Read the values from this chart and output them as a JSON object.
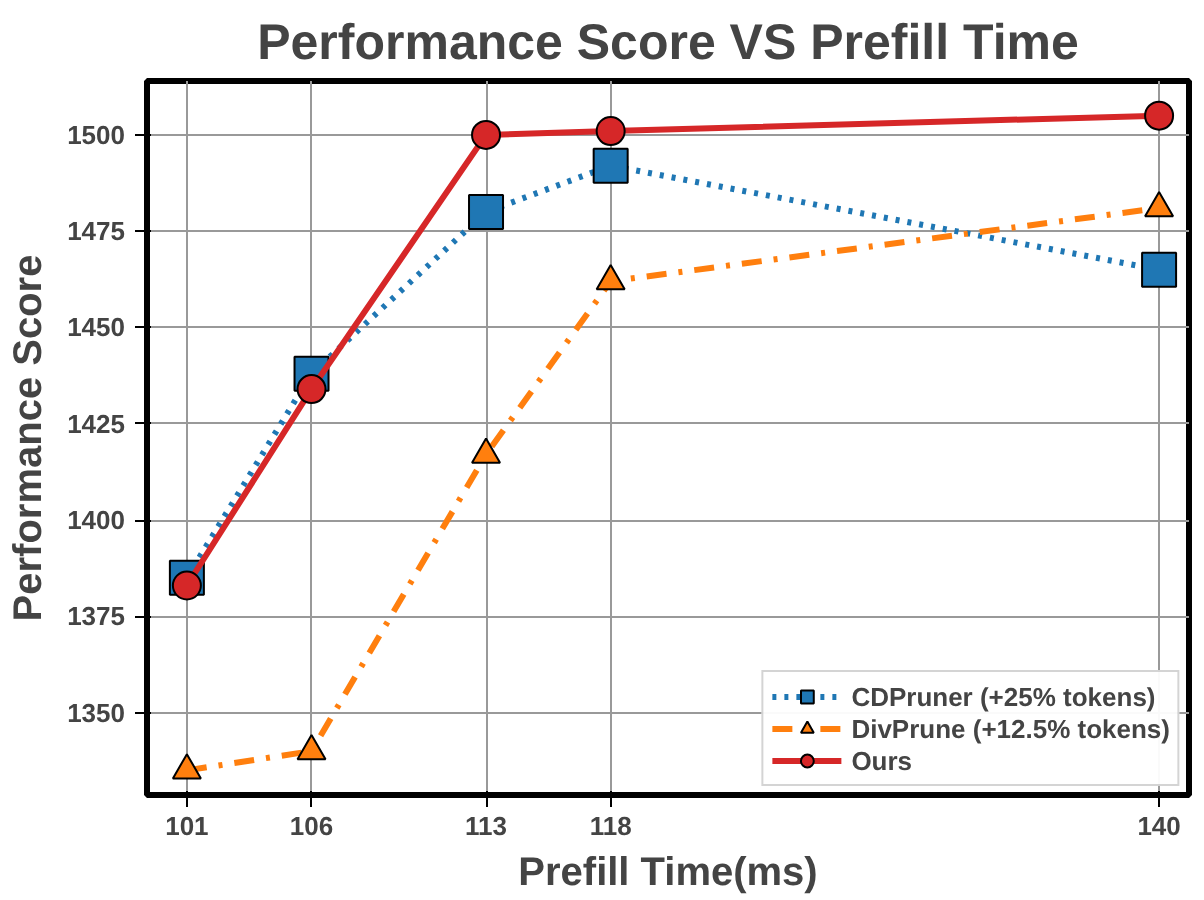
{
  "chart_data": {
    "type": "line",
    "title": "Performance Score VS Prefill Time",
    "xlabel": "Prefill Time(ms)",
    "ylabel": "Performance Score",
    "x": [
      101,
      106,
      113,
      118,
      140
    ],
    "series": [
      {
        "name": "CDPruner (+25% tokens)",
        "color": "#1f77b4",
        "values": [
          1385,
          1438,
          1480,
          1492,
          1465
        ],
        "marker": "square",
        "line_style": "dotted"
      },
      {
        "name": "DivPrune (+12.5% tokens)",
        "color": "#ff7f0e",
        "values": [
          1335,
          1340,
          1417,
          1462,
          1481
        ],
        "marker": "triangle",
        "line_style": "dashed"
      },
      {
        "name": "Ours",
        "color": "#d62728",
        "values": [
          1383,
          1434,
          1500,
          1501,
          1505
        ],
        "marker": "circle",
        "line_style": "solid"
      }
    ],
    "xlim": [
      99.4,
      141.2
    ],
    "ylim": [
      1328.6,
      1514
    ],
    "xticks": [
      101,
      106,
      113,
      118,
      140
    ],
    "yticks": [
      1350,
      1375,
      1400,
      1425,
      1450,
      1475,
      1500
    ],
    "grid": true,
    "legend": "bottom right"
  }
}
